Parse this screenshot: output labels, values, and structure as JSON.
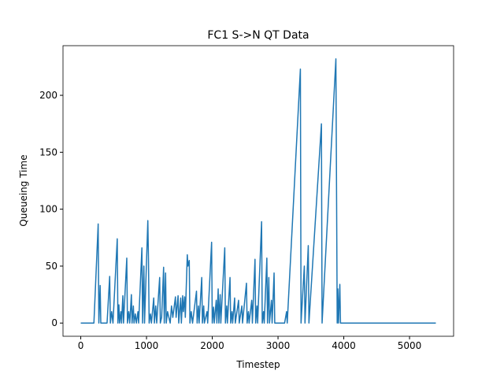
{
  "chart_data": {
    "type": "line",
    "title": "FC1 S->N QT Data",
    "xlabel": "Timestep",
    "ylabel": "Queueing Time",
    "xlim": [
      -270,
      5670
    ],
    "ylim": [
      -11.6,
      243.6
    ],
    "xticks": [
      0,
      1000,
      2000,
      3000,
      4000,
      5000
    ],
    "yticks": [
      0,
      50,
      100,
      150,
      200
    ],
    "series": [
      {
        "color": "#1f77b4",
        "x": [
          0,
          200,
          265,
          275,
          295,
          305,
          400,
          440,
          450,
          470,
          490,
          555,
          565,
          580,
          590,
          610,
          620,
          640,
          650,
          700,
          710,
          730,
          745,
          770,
          780,
          800,
          810,
          830,
          845,
          870,
          880,
          930,
          940,
          960,
          970,
          1020,
          1030,
          1040,
          1060,
          1075,
          1110,
          1120,
          1140,
          1155,
          1200,
          1210,
          1230,
          1260,
          1270,
          1290,
          1300,
          1320,
          1340,
          1360,
          1380,
          1400,
          1440,
          1450,
          1480,
          1490,
          1520,
          1530,
          1550,
          1560,
          1580,
          1590,
          1620,
          1630,
          1650,
          1660,
          1680,
          1700,
          1760,
          1770,
          1790,
          1800,
          1840,
          1850,
          1870,
          1880,
          1920,
          1930,
          1990,
          2000,
          2020,
          2030,
          2060,
          2070,
          2090,
          2100,
          2120,
          2130,
          2190,
          2200,
          2220,
          2230,
          2270,
          2280,
          2300,
          2310,
          2340,
          2350,
          2400,
          2410,
          2450,
          2460,
          2520,
          2530,
          2550,
          2560,
          2600,
          2610,
          2650,
          2660,
          2680,
          2690,
          2750,
          2760,
          2780,
          2790,
          2830,
          2840,
          2860,
          2870,
          2900,
          2910,
          2940,
          2950,
          3100,
          3130,
          3140,
          3340,
          3350,
          3400,
          3410,
          3460,
          3470,
          3660,
          3670,
          3880,
          3900,
          3910,
          3920,
          3940,
          3950,
          5400
        ],
        "values": [
          0,
          0,
          87,
          0,
          33,
          0,
          0,
          41,
          0,
          10,
          0,
          74,
          0,
          16,
          0,
          10,
          0,
          24,
          0,
          57,
          0,
          10,
          0,
          25,
          0,
          15,
          0,
          8,
          0,
          10,
          0,
          66,
          0,
          50,
          0,
          90,
          55,
          0,
          8,
          0,
          22,
          0,
          15,
          0,
          40,
          0,
          5,
          49,
          0,
          44,
          0,
          10,
          5,
          0,
          15,
          5,
          23,
          5,
          24,
          0,
          22,
          0,
          24,
          10,
          23,
          5,
          60,
          50,
          55,
          0,
          10,
          0,
          28,
          0,
          15,
          0,
          40,
          0,
          15,
          0,
          10,
          0,
          71,
          0,
          14,
          0,
          20,
          0,
          30,
          0,
          25,
          0,
          66,
          0,
          15,
          0,
          40,
          0,
          10,
          0,
          22,
          0,
          20,
          0,
          15,
          0,
          35,
          0,
          10,
          0,
          20,
          0,
          56,
          0,
          15,
          0,
          89,
          0,
          10,
          0,
          57,
          0,
          40,
          0,
          20,
          0,
          44,
          0,
          0,
          10,
          0,
          223,
          0,
          50,
          0,
          68,
          0,
          175,
          0,
          232,
          0,
          30,
          0,
          34,
          0,
          0
        ]
      }
    ]
  }
}
